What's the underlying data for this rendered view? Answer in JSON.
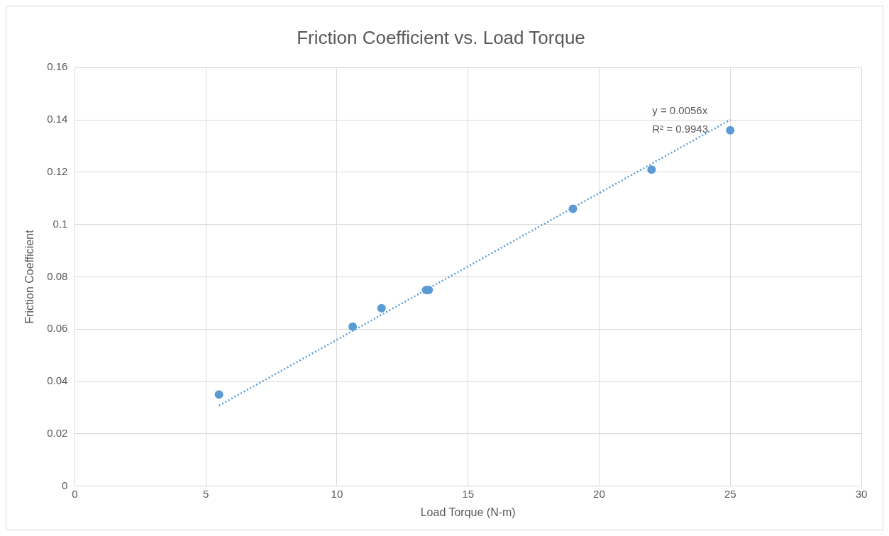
{
  "chart_data": {
    "type": "scatter",
    "title": "Friction Coefficient vs. Load Torque",
    "xlabel": "Load Torque (N-m)",
    "ylabel": "Friction Coefficient",
    "xlim": [
      0,
      30
    ],
    "xticks": [
      0,
      5,
      10,
      15,
      20,
      25,
      30
    ],
    "ylim": [
      0,
      0.16
    ],
    "yticks": [
      0,
      0.02,
      0.04,
      0.06,
      0.08,
      0.1,
      0.12,
      0.14,
      0.16
    ],
    "grid": true,
    "marker": "circle",
    "series": [
      {
        "type": "scatter",
        "color": "#5b9bd5",
        "x": [
          5.5,
          10.6,
          11.7,
          13.4,
          13.5,
          19,
          22,
          25
        ],
        "values": [
          0.035,
          0.061,
          0.068,
          0.075,
          0.075,
          0.106,
          0.121,
          0.136
        ]
      },
      {
        "type": "line",
        "color": "#5b9bd5",
        "line_style": "dotted",
        "marker": "none",
        "x": [
          5.5,
          25
        ],
        "values": [
          0.0308,
          0.14
        ]
      }
    ],
    "annotations": [
      "y = 0.0056x",
      "R² = 0.9943"
    ]
  }
}
